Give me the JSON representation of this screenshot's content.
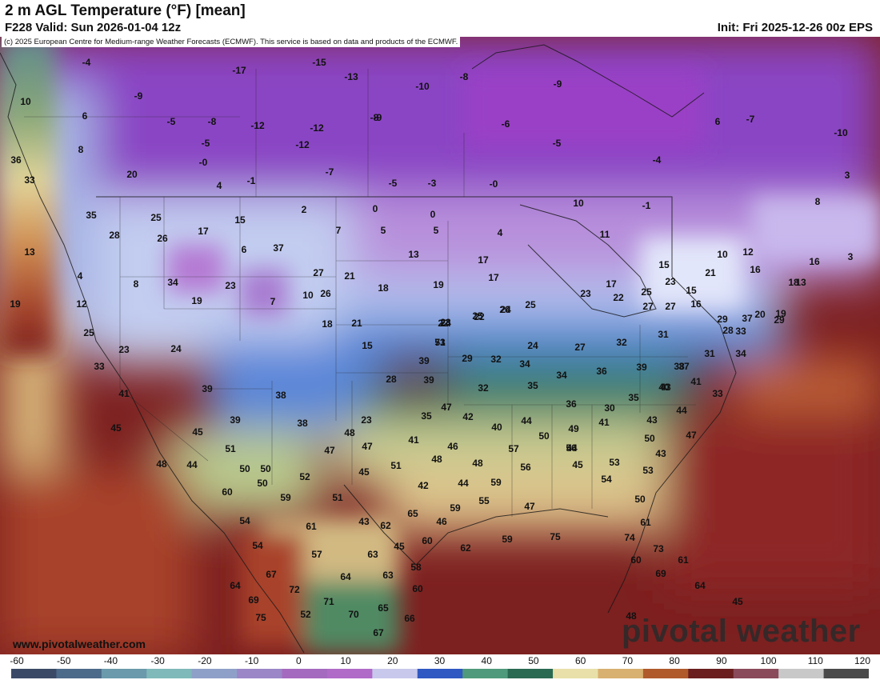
{
  "header": {
    "title": "2 m AGL Temperature (°F) [mean]",
    "valid": "F228 Valid: Sun 2026-01-04 12z",
    "init": "Init: Fri 2025-12-26 00z EPS"
  },
  "credit": "(c) 2025 European Centre for Medium-range Weather Forecasts (ECMWF). This service is based on data and products of the ECMWF.",
  "brand": "www.pivotalweather.com",
  "logo": "pivotal weather",
  "colorbar": {
    "ticks": [
      "-60",
      "-50",
      "-40",
      "-30",
      "-20",
      "-10",
      "0",
      "10",
      "20",
      "30",
      "40",
      "50",
      "60",
      "70",
      "80",
      "90",
      "100",
      "110",
      "120"
    ],
    "colors": [
      "#3a4a66",
      "#4c6a8a",
      "#6a9aab",
      "#7fb9b9",
      "#8fa0c8",
      "#9b86c8",
      "#a46ac0",
      "#b06ac8",
      "#c8c8ec",
      "#2f58c2",
      "#4f9a7c",
      "#2a6a52",
      "#e8e0a8",
      "#d8b070",
      "#b05a2c",
      "#6a1e1e",
      "#8a4a5a",
      "#c8c8c8",
      "#4a4a4a"
    ]
  },
  "map": {
    "labels": [
      {
        "t": "-4"
      },
      {
        "t": "-15"
      },
      {
        "t": "-17"
      },
      {
        "t": "-13"
      },
      {
        "t": "-9"
      },
      {
        "t": "-8"
      },
      {
        "t": "10"
      },
      {
        "t": "-9"
      },
      {
        "t": "-10"
      },
      {
        "t": "6"
      },
      {
        "t": "-5"
      },
      {
        "t": "-8"
      },
      {
        "t": "-12"
      },
      {
        "t": "-12"
      },
      {
        "t": "-9"
      },
      {
        "t": "-6"
      },
      {
        "t": "-8"
      },
      {
        "t": "6"
      },
      {
        "t": "-7"
      },
      {
        "t": "-10"
      },
      {
        "t": "8"
      },
      {
        "t": "-5"
      },
      {
        "t": "-12"
      },
      {
        "t": "-5"
      },
      {
        "t": "36"
      },
      {
        "t": "-0"
      },
      {
        "t": "-7"
      },
      {
        "t": "-5"
      },
      {
        "t": "-3"
      },
      {
        "t": "-0"
      },
      {
        "t": "-4"
      },
      {
        "t": "3"
      },
      {
        "t": "20"
      },
      {
        "t": "4"
      },
      {
        "t": "-1"
      },
      {
        "t": "33"
      },
      {
        "t": "35"
      },
      {
        "t": "25"
      },
      {
        "t": "17"
      },
      {
        "t": "15"
      },
      {
        "t": "2"
      },
      {
        "t": "0"
      },
      {
        "t": "0"
      },
      {
        "t": "10"
      },
      {
        "t": "-1"
      },
      {
        "t": "5"
      },
      {
        "t": "8"
      },
      {
        "t": "28"
      },
      {
        "t": "26"
      },
      {
        "t": "7"
      },
      {
        "t": "5"
      },
      {
        "t": "4"
      },
      {
        "t": "11"
      },
      {
        "t": "13"
      },
      {
        "t": "6"
      },
      {
        "t": "37"
      },
      {
        "t": "13"
      },
      {
        "t": "17"
      },
      {
        "t": "10"
      },
      {
        "t": "12"
      },
      {
        "t": "3"
      },
      {
        "t": "4"
      },
      {
        "t": "8"
      },
      {
        "t": "34"
      },
      {
        "t": "23"
      },
      {
        "t": "27"
      },
      {
        "t": "21"
      },
      {
        "t": "18"
      },
      {
        "t": "19"
      },
      {
        "t": "17"
      },
      {
        "t": "15"
      },
      {
        "t": "16"
      },
      {
        "t": "16"
      },
      {
        "t": "7"
      },
      {
        "t": "10"
      },
      {
        "t": "19"
      },
      {
        "t": "19"
      },
      {
        "t": "17"
      },
      {
        "t": "23"
      },
      {
        "t": "21"
      },
      {
        "t": "18"
      },
      {
        "t": "12"
      },
      {
        "t": "13"
      },
      {
        "t": "29"
      },
      {
        "t": "26"
      },
      {
        "t": "21"
      },
      {
        "t": "23"
      },
      {
        "t": "22"
      },
      {
        "t": "24"
      },
      {
        "t": "22"
      },
      {
        "t": "25"
      },
      {
        "t": "15"
      },
      {
        "t": "16"
      },
      {
        "t": "37"
      },
      {
        "t": "25"
      },
      {
        "t": "24"
      },
      {
        "t": "25"
      },
      {
        "t": "26"
      },
      {
        "t": "25"
      },
      {
        "t": "23"
      },
      {
        "t": "22"
      },
      {
        "t": "27"
      },
      {
        "t": "27"
      },
      {
        "t": "29"
      },
      {
        "t": "20"
      },
      {
        "t": "19"
      },
      {
        "t": "28"
      },
      {
        "t": "23"
      },
      {
        "t": "24"
      },
      {
        "t": "18"
      },
      {
        "t": "15"
      },
      {
        "t": "24"
      },
      {
        "t": "27"
      },
      {
        "t": "32"
      },
      {
        "t": "33"
      },
      {
        "t": "31"
      },
      {
        "t": "34"
      },
      {
        "t": "39"
      },
      {
        "t": "29"
      },
      {
        "t": "32"
      },
      {
        "t": "34"
      },
      {
        "t": "34"
      },
      {
        "t": "36"
      },
      {
        "t": "39"
      },
      {
        "t": "38"
      },
      {
        "t": "37"
      },
      {
        "t": "31"
      },
      {
        "t": "33"
      },
      {
        "t": "28"
      },
      {
        "t": "39"
      },
      {
        "t": "32"
      },
      {
        "t": "35"
      },
      {
        "t": "40"
      },
      {
        "t": "41"
      },
      {
        "t": "33"
      },
      {
        "t": "35"
      },
      {
        "t": "41"
      },
      {
        "t": "39"
      },
      {
        "t": "38"
      },
      {
        "t": "36"
      },
      {
        "t": "30"
      },
      {
        "t": "44"
      },
      {
        "t": "43"
      },
      {
        "t": "39"
      },
      {
        "t": "38"
      },
      {
        "t": "23"
      },
      {
        "t": "35"
      },
      {
        "t": "42"
      },
      {
        "t": "45"
      },
      {
        "t": "45"
      },
      {
        "t": "40"
      },
      {
        "t": "44"
      },
      {
        "t": "49"
      },
      {
        "t": "48"
      },
      {
        "t": "47"
      },
      {
        "t": "41"
      },
      {
        "t": "43"
      },
      {
        "t": "47"
      },
      {
        "t": "41"
      },
      {
        "t": "46"
      },
      {
        "t": "50"
      },
      {
        "t": "51"
      },
      {
        "t": "50"
      },
      {
        "t": "47"
      },
      {
        "t": "45"
      },
      {
        "t": "44"
      },
      {
        "t": "53"
      },
      {
        "t": "50"
      },
      {
        "t": "43"
      },
      {
        "t": "47"
      },
      {
        "t": "48"
      },
      {
        "t": "44"
      },
      {
        "t": "48"
      },
      {
        "t": "48"
      },
      {
        "t": "56"
      },
      {
        "t": "57"
      },
      {
        "t": "56"
      },
      {
        "t": "53"
      },
      {
        "t": "50"
      },
      {
        "t": "51"
      },
      {
        "t": "45"
      },
      {
        "t": "54"
      },
      {
        "t": "50"
      },
      {
        "t": "52"
      },
      {
        "t": "42"
      },
      {
        "t": "44"
      },
      {
        "t": "59"
      },
      {
        "t": "60"
      },
      {
        "t": "59"
      },
      {
        "t": "51"
      },
      {
        "t": "43"
      },
      {
        "t": "46"
      },
      {
        "t": "50"
      },
      {
        "t": "54"
      },
      {
        "t": "59"
      },
      {
        "t": "55"
      },
      {
        "t": "65"
      },
      {
        "t": "62"
      },
      {
        "t": "61"
      },
      {
        "t": "61"
      },
      {
        "t": "47"
      },
      {
        "t": "54"
      },
      {
        "t": "62"
      },
      {
        "t": "59"
      },
      {
        "t": "75"
      },
      {
        "t": "74"
      },
      {
        "t": "73"
      },
      {
        "t": "57"
      },
      {
        "t": "63"
      },
      {
        "t": "45"
      },
      {
        "t": "60"
      },
      {
        "t": "67"
      },
      {
        "t": "64"
      },
      {
        "t": "63"
      },
      {
        "t": "58"
      },
      {
        "t": "60"
      },
      {
        "t": "69"
      },
      {
        "t": "61"
      },
      {
        "t": "64"
      },
      {
        "t": "72"
      },
      {
        "t": "60"
      },
      {
        "t": "64"
      },
      {
        "t": "69"
      },
      {
        "t": "71"
      },
      {
        "t": "65"
      },
      {
        "t": "45"
      },
      {
        "t": "52"
      },
      {
        "t": "75"
      },
      {
        "t": "70"
      },
      {
        "t": "66"
      },
      {
        "t": "48"
      },
      {
        "t": "67"
      },
      {
        "t": "73"
      },
      {
        "t": "51"
      }
    ]
  }
}
